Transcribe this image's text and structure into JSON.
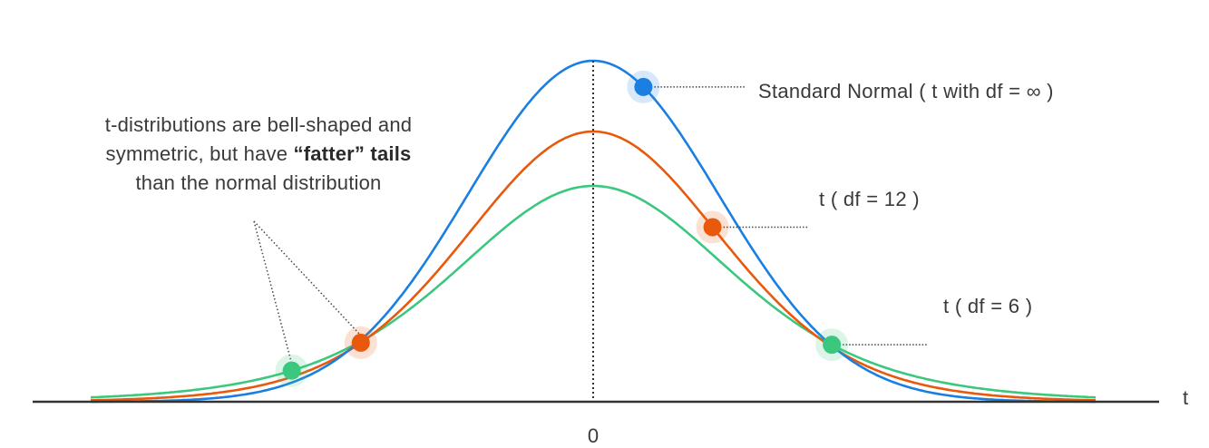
{
  "annotation": {
    "line1": "t-distributions are bell-shaped  and",
    "line2_pre": "symmetric, but have ",
    "line2_bold": "“fatter” tails",
    "line3": "than the normal distribution"
  },
  "axis": {
    "x_name": "t",
    "tick_center": "0"
  },
  "chart_data": {
    "type": "line",
    "xlabel": "t",
    "ylabel": "",
    "xlim": [
      -4,
      4
    ],
    "x_ticks": [
      "0"
    ],
    "series": [
      {
        "name": "Standard Normal ( t with df =  ∞ )",
        "df": "infinity",
        "color": "#1a7fe0",
        "marker_x": 0.4
      },
      {
        "name": "t ( df  = 12 )",
        "df": 12,
        "color": "#e8590c",
        "marker_x": 0.95
      },
      {
        "name": "t ( df  = 6 )",
        "df": 6,
        "color": "#3cc77f",
        "marker_x": 1.9
      }
    ],
    "left_markers": [
      {
        "series": "t ( df  = 6 )",
        "x": -2.4
      },
      {
        "series": "t ( df  = 12 )",
        "x": -1.85
      }
    ],
    "center_line_x": 0
  },
  "labels": {
    "normal": "Standard Normal ( t with df =  ∞ )",
    "df12": "t ( df  = 12 )",
    "df6": "t ( df  = 6 )"
  },
  "colors": {
    "normal": "#1a7fe0",
    "df12": "#e8590c",
    "df6": "#3cc77f",
    "axis": "#333333",
    "text": "#3a3a3a"
  }
}
